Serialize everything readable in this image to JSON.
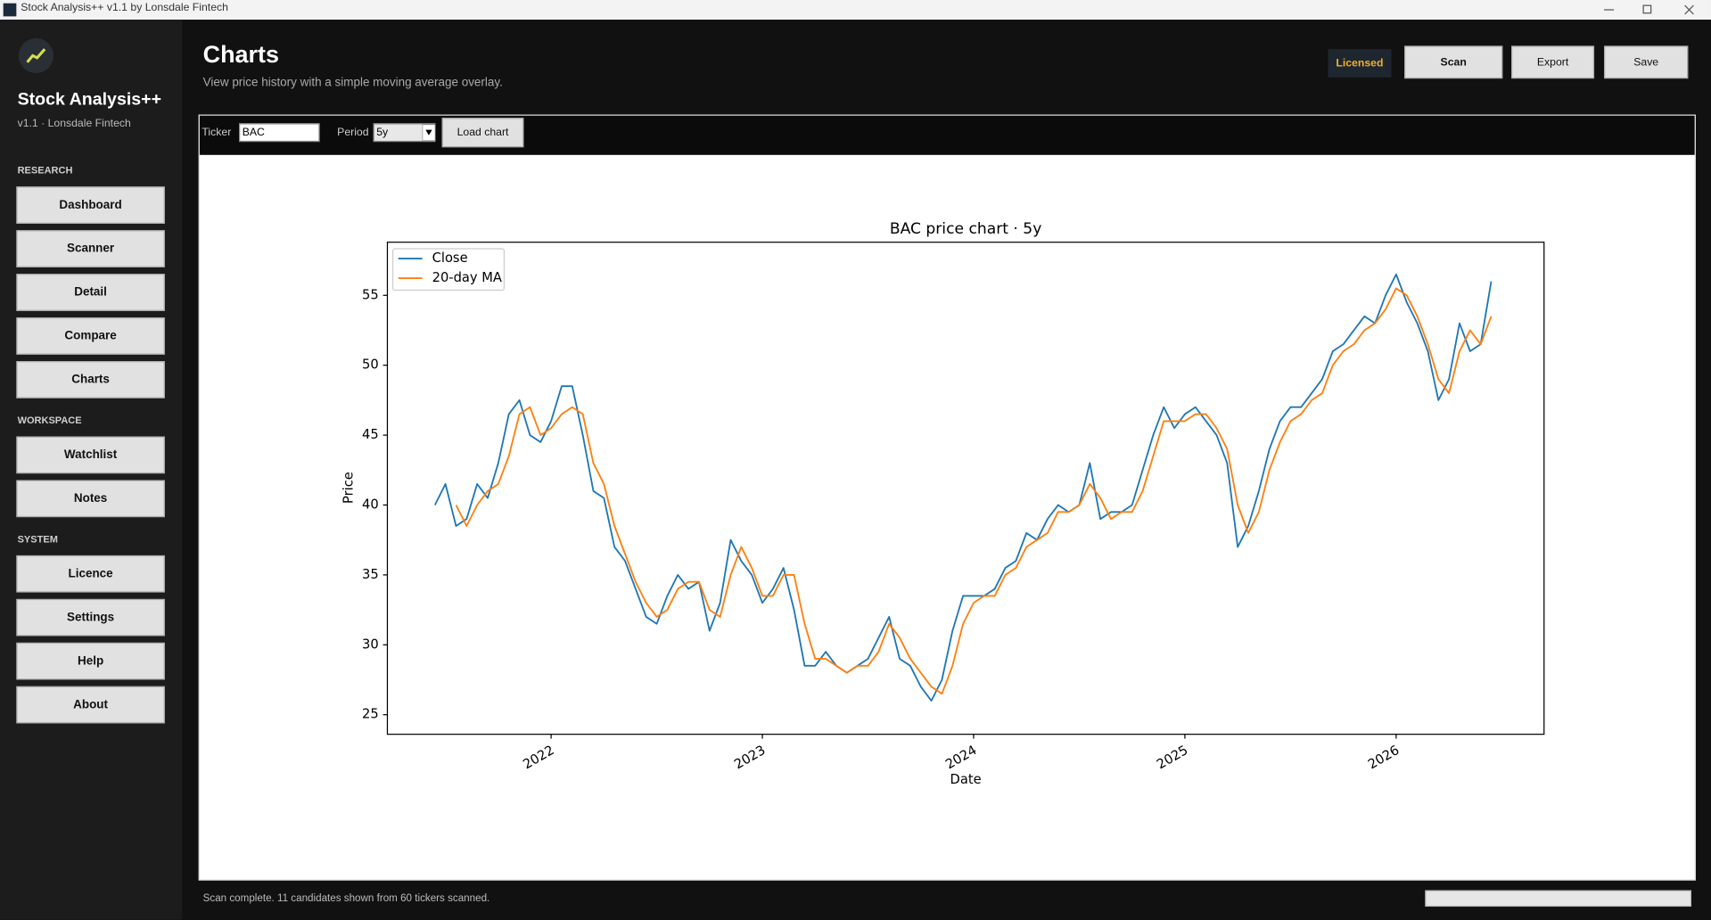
{
  "window": {
    "title": "Stock Analysis++ v1.1 by Lonsdale Fintech"
  },
  "sidebar": {
    "app_name": "Stock Analysis++",
    "version": "v1.1 · Lonsdale Fintech",
    "sections": [
      {
        "label": "RESEARCH",
        "items": [
          "Dashboard",
          "Scanner",
          "Detail",
          "Compare",
          "Charts"
        ]
      },
      {
        "label": "WORKSPACE",
        "items": [
          "Watchlist",
          "Notes"
        ]
      },
      {
        "label": "SYSTEM",
        "items": [
          "Licence",
          "Settings",
          "Help",
          "About"
        ]
      }
    ]
  },
  "header": {
    "title": "Charts",
    "subtitle": "View price history with a simple moving average overlay."
  },
  "badge": "Licensed",
  "actions": [
    "Scan",
    "Export",
    "Save"
  ],
  "toolbar": {
    "ticker_label": "Ticker",
    "ticker": "BAC",
    "period_label": "Period",
    "period": "5y",
    "button": "Load chart"
  },
  "chart_data": {
    "type": "line",
    "title": "BAC price chart · 5y",
    "x_label": "Date",
    "y_label": "Price",
    "x": [
      2021.45,
      2021.5,
      2021.55,
      2021.6,
      2021.65,
      2021.7,
      2021.75,
      2021.8,
      2021.85,
      2021.9,
      2021.95,
      2022,
      2022.05,
      2022.1,
      2022.15,
      2022.2,
      2022.25,
      2022.3,
      2022.35,
      2022.4,
      2022.45,
      2022.5,
      2022.55,
      2022.6,
      2022.65,
      2022.7,
      2022.75,
      2022.8,
      2022.85,
      2022.9,
      2022.95,
      2023,
      2023.05,
      2023.1,
      2023.15,
      2023.2,
      2023.25,
      2023.3,
      2023.35,
      2023.4,
      2023.45,
      2023.5,
      2023.55,
      2023.6,
      2023.65,
      2023.7,
      2023.75,
      2023.8,
      2023.85,
      2023.9,
      2023.95,
      2024,
      2024.05,
      2024.1,
      2024.15,
      2024.2,
      2024.25,
      2024.3,
      2024.35,
      2024.4,
      2024.45,
      2024.5,
      2024.55,
      2024.6,
      2024.65,
      2024.7,
      2024.75,
      2024.8,
      2024.85,
      2024.9,
      2024.95,
      2025,
      2025.05,
      2025.1,
      2025.15,
      2025.2,
      2025.25,
      2025.3,
      2025.35,
      2025.4,
      2025.45,
      2025.5,
      2025.55,
      2025.6,
      2025.65,
      2025.7,
      2025.75,
      2025.8,
      2025.85,
      2025.9,
      2025.95,
      2026,
      2026.05,
      2026.1,
      2026.15,
      2026.2,
      2026.25,
      2026.3,
      2026.35,
      2026.4,
      2026.45
    ],
    "series": [
      {
        "name": "Close",
        "color": "#1f77b4",
        "values": [
          40,
          41.5,
          38.5,
          39,
          41.5,
          40.5,
          43,
          46.5,
          47.5,
          45,
          44.5,
          46,
          48.5,
          48.5,
          45,
          41,
          40.5,
          37,
          36,
          34,
          32,
          31.5,
          33.5,
          35,
          34,
          34.5,
          31,
          33,
          37.5,
          36,
          35,
          33,
          34,
          35.5,
          32.5,
          28.5,
          28.5,
          29.5,
          28.5,
          28,
          28.5,
          29,
          30.5,
          32,
          29,
          28.5,
          27,
          26,
          27.5,
          31,
          33.5,
          33.5,
          33.5,
          34,
          35.5,
          36,
          38,
          37.5,
          39,
          40,
          39.5,
          40,
          43,
          39,
          39.5,
          39.5,
          40,
          42.5,
          45,
          47,
          45.5,
          46.5,
          47,
          46,
          45,
          43,
          37,
          38.5,
          41,
          44,
          46,
          47,
          47,
          48,
          49,
          51,
          51.5,
          52.5,
          53.5,
          53,
          55,
          56.5,
          54.5,
          53,
          51,
          47.5,
          49,
          53,
          51,
          51.5,
          56
        ]
      },
      {
        "name": "20-day MA",
        "color": "#ff7f0e",
        "values": [
          null,
          null,
          40,
          38.5,
          40,
          41,
          41.5,
          43.5,
          46.5,
          47,
          45,
          45.5,
          46.5,
          47,
          46.5,
          43,
          41.5,
          38.5,
          36.5,
          34.5,
          33,
          32,
          32.5,
          34,
          34.5,
          34.5,
          32.5,
          32,
          35,
          37,
          35.5,
          33.5,
          33.5,
          35,
          35,
          31.5,
          29,
          29,
          28.5,
          28,
          28.5,
          28.5,
          29.5,
          31.5,
          30.5,
          29,
          28,
          27,
          26.5,
          28.5,
          31.5,
          33,
          33.5,
          33.5,
          35,
          35.5,
          37,
          37.5,
          38,
          39.5,
          39.5,
          40,
          41.5,
          40.5,
          39,
          39.5,
          39.5,
          41,
          43.5,
          46,
          46,
          46,
          46.5,
          46.5,
          45.5,
          44,
          40,
          38,
          39.5,
          42.5,
          44.5,
          46,
          46.5,
          47.5,
          48,
          50,
          51,
          51.5,
          52.5,
          53,
          54,
          55.5,
          55,
          53.5,
          51.5,
          49,
          48,
          51,
          52.5,
          51.5,
          53.5
        ]
      }
    ],
    "xlim": [
      2021.225,
      2026.7
    ],
    "xticks": [
      2022,
      2023,
      2024,
      2025,
      2026
    ],
    "ylim": [
      23.6,
      58.8
    ],
    "yticks": [
      25,
      30,
      35,
      40,
      45,
      50,
      55
    ],
    "grid": false,
    "legend": "upper left"
  },
  "status": {
    "message": "Scan complete. 11 candidates shown from 60 tickers scanned."
  }
}
